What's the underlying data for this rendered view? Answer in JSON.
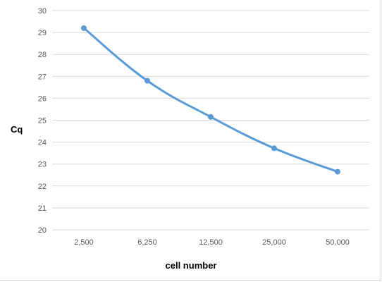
{
  "chart_data": {
    "type": "line",
    "title": "",
    "xlabel": "cell number",
    "ylabel": "Cq",
    "categories": [
      "2,500",
      "6,250",
      "12,500",
      "25,000",
      "50,000"
    ],
    "series": [
      {
        "values": [
          29.2,
          26.8,
          25.15,
          23.72,
          22.65
        ],
        "color": "#5b9bd5"
      }
    ],
    "ylim": [
      20,
      30
    ],
    "yticks": [
      20,
      21,
      22,
      23,
      24,
      25,
      26,
      27,
      28,
      29,
      30
    ],
    "grid": true,
    "smooth": true,
    "markers": true,
    "legend": "none",
    "colors": {
      "series": "#5b9bd5",
      "grid": "#d9d9d9",
      "tick_text": "#595959"
    }
  }
}
